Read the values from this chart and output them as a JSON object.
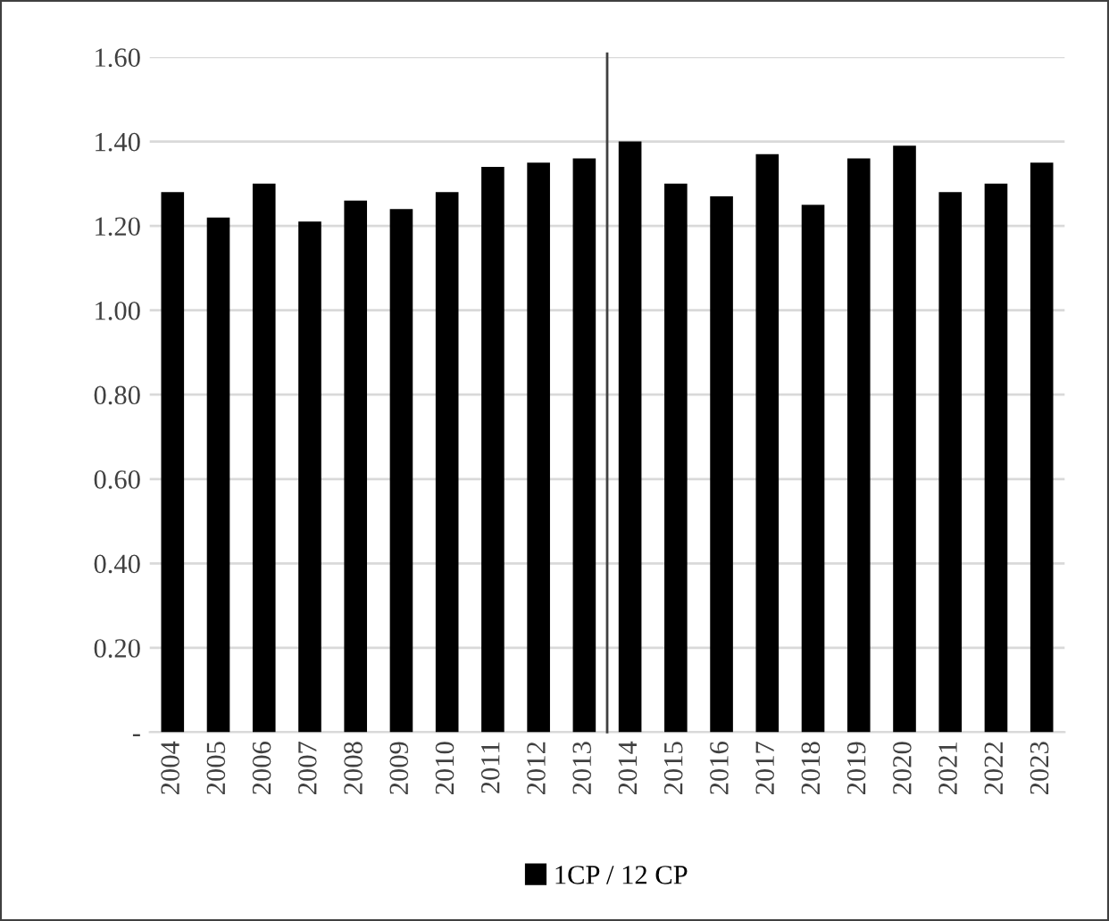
{
  "chart_data": {
    "type": "bar",
    "x": [
      2004,
      2005,
      2006,
      2007,
      2008,
      2009,
      2010,
      2011,
      2012,
      2013,
      2014,
      2015,
      2016,
      2017,
      2018,
      2019,
      2020,
      2021,
      2022,
      2023
    ],
    "series": [
      {
        "name": "1CP / 12 CP",
        "color": "#000000",
        "values": [
          1.28,
          1.22,
          1.3,
          1.21,
          1.26,
          1.24,
          1.28,
          1.34,
          1.35,
          1.36,
          1.4,
          1.3,
          1.27,
          1.37,
          1.25,
          1.36,
          1.39,
          1.28,
          1.3,
          1.35
        ]
      }
    ],
    "xlim": [
      2003.5,
      2023.5
    ],
    "xticks": [
      2004,
      2005,
      2006,
      2007,
      2008,
      2009,
      2010,
      2011,
      2012,
      2013,
      2014,
      2015,
      2016,
      2017,
      2018,
      2019,
      2020,
      2021,
      2022,
      2023
    ],
    "ylim": [
      0,
      1.6
    ],
    "yticks": [
      {
        "value": 0,
        "label": "-"
      },
      {
        "value": 0.2,
        "label": "0.20"
      },
      {
        "value": 0.4,
        "label": "0.40"
      },
      {
        "value": 0.6,
        "label": "0.60"
      },
      {
        "value": 0.8,
        "label": "0.80"
      },
      {
        "value": 1.0,
        "label": "1.00"
      },
      {
        "value": 1.2,
        "label": "1.20"
      },
      {
        "value": 1.4,
        "label": "1.40"
      },
      {
        "value": 1.6,
        "label": "1.60"
      }
    ],
    "ref_lines": [
      {
        "axis": "x",
        "value": 2013.5,
        "color": "#404040"
      }
    ],
    "grid": "y",
    "legend": "bottom"
  }
}
